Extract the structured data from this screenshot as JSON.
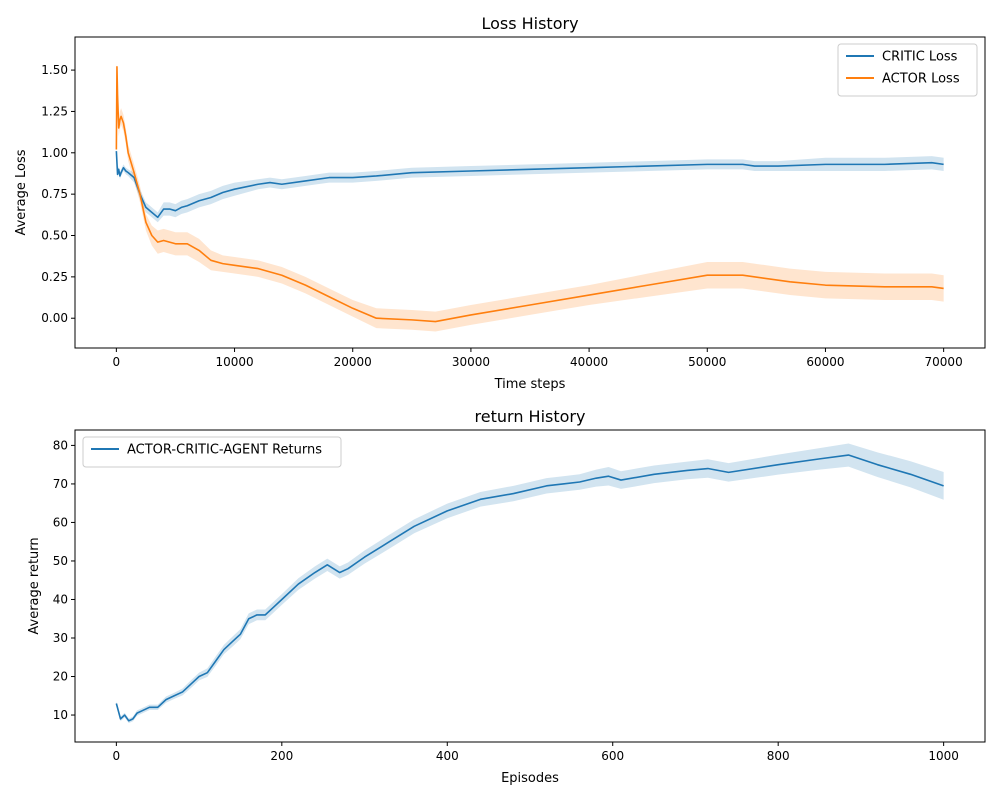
{
  "chart_data": [
    {
      "type": "line",
      "title": "Loss History",
      "xlabel": "Time steps",
      "ylabel": "Average Loss",
      "xlim": [
        -3500,
        73500
      ],
      "ylim": [
        -0.18,
        1.7
      ],
      "xticks": [
        0,
        10000,
        20000,
        30000,
        40000,
        50000,
        60000,
        70000
      ],
      "xtick_labels": [
        "0",
        "10000",
        "20000",
        "30000",
        "40000",
        "50000",
        "60000",
        "70000"
      ],
      "yticks": [
        0.0,
        0.25,
        0.5,
        0.75,
        1.0,
        1.25,
        1.5
      ],
      "ytick_labels": [
        "0.00",
        "0.25",
        "0.50",
        "0.75",
        "1.00",
        "1.25",
        "1.50"
      ],
      "grid": false,
      "legend_position": "upper right",
      "series": [
        {
          "name": "CRITIC Loss",
          "color": "#1f77b4",
          "band_color": "#1f77b4",
          "x": [
            0,
            100,
            200,
            300,
            400,
            600,
            800,
            1000,
            1500,
            2000,
            2500,
            3000,
            3500,
            4000,
            4500,
            5000,
            5500,
            6000,
            7000,
            8000,
            9000,
            10000,
            12000,
            13000,
            14000,
            16000,
            18000,
            20000,
            22000,
            25000,
            30000,
            35000,
            40000,
            45000,
            50000,
            53000,
            54000,
            56000,
            60000,
            65000,
            69000,
            70000
          ],
          "y": [
            1.01,
            0.87,
            0.9,
            0.86,
            0.88,
            0.91,
            0.89,
            0.88,
            0.85,
            0.75,
            0.67,
            0.64,
            0.61,
            0.66,
            0.66,
            0.65,
            0.67,
            0.68,
            0.71,
            0.73,
            0.76,
            0.78,
            0.81,
            0.82,
            0.81,
            0.83,
            0.85,
            0.85,
            0.86,
            0.88,
            0.89,
            0.9,
            0.91,
            0.92,
            0.93,
            0.93,
            0.92,
            0.92,
            0.93,
            0.93,
            0.94,
            0.93
          ],
          "band_half_width": [
            0.02,
            0.02,
            0.02,
            0.02,
            0.02,
            0.02,
            0.02,
            0.02,
            0.03,
            0.03,
            0.03,
            0.03,
            0.03,
            0.04,
            0.04,
            0.04,
            0.04,
            0.04,
            0.04,
            0.04,
            0.04,
            0.04,
            0.03,
            0.03,
            0.03,
            0.03,
            0.03,
            0.03,
            0.03,
            0.03,
            0.03,
            0.03,
            0.03,
            0.03,
            0.03,
            0.03,
            0.03,
            0.03,
            0.04,
            0.04,
            0.04,
            0.04
          ]
        },
        {
          "name": "ACTOR Loss",
          "color": "#ff7f0e",
          "band_color": "#ff7f0e",
          "x": [
            0,
            50,
            100,
            200,
            300,
            400,
            600,
            800,
            1000,
            1500,
            2000,
            2500,
            3000,
            3500,
            4000,
            4500,
            5000,
            5500,
            6000,
            7000,
            8000,
            9000,
            10000,
            12000,
            14000,
            16000,
            18000,
            20000,
            22000,
            25000,
            27000,
            30000,
            35000,
            40000,
            45000,
            50000,
            53000,
            57000,
            60000,
            65000,
            69000,
            70000
          ],
          "y": [
            1.02,
            1.52,
            1.35,
            1.15,
            1.2,
            1.22,
            1.18,
            1.1,
            1.0,
            0.88,
            0.75,
            0.58,
            0.5,
            0.46,
            0.47,
            0.46,
            0.45,
            0.45,
            0.45,
            0.41,
            0.35,
            0.33,
            0.32,
            0.3,
            0.26,
            0.2,
            0.13,
            0.06,
            0.0,
            -0.01,
            -0.02,
            0.02,
            0.08,
            0.14,
            0.2,
            0.26,
            0.26,
            0.22,
            0.2,
            0.19,
            0.19,
            0.18
          ],
          "band_half_width": [
            0.03,
            0.03,
            0.04,
            0.05,
            0.05,
            0.05,
            0.05,
            0.05,
            0.05,
            0.05,
            0.05,
            0.05,
            0.06,
            0.07,
            0.07,
            0.07,
            0.07,
            0.07,
            0.07,
            0.07,
            0.06,
            0.05,
            0.05,
            0.05,
            0.05,
            0.05,
            0.05,
            0.05,
            0.06,
            0.06,
            0.06,
            0.06,
            0.06,
            0.06,
            0.07,
            0.08,
            0.08,
            0.08,
            0.08,
            0.08,
            0.08,
            0.08
          ]
        }
      ]
    },
    {
      "type": "line",
      "title": "return History",
      "xlabel": "Episodes",
      "ylabel": "Average return",
      "xlim": [
        -50,
        1050
      ],
      "ylim": [
        3,
        84
      ],
      "xticks": [
        0,
        200,
        400,
        600,
        800,
        1000
      ],
      "xtick_labels": [
        "0",
        "200",
        "400",
        "600",
        "800",
        "1000"
      ],
      "yticks": [
        10,
        20,
        30,
        40,
        50,
        60,
        70,
        80
      ],
      "ytick_labels": [
        "10",
        "20",
        "30",
        "40",
        "50",
        "60",
        "70",
        "80"
      ],
      "grid": false,
      "legend_position": "upper left",
      "series": [
        {
          "name": "ACTOR-CRITIC-AGENT Returns",
          "color": "#1f77b4",
          "band_color": "#1f77b4",
          "x": [
            0,
            5,
            10,
            15,
            20,
            25,
            30,
            40,
            50,
            60,
            70,
            80,
            90,
            100,
            110,
            120,
            130,
            140,
            150,
            160,
            170,
            180,
            190,
            200,
            220,
            240,
            255,
            270,
            280,
            300,
            330,
            360,
            400,
            440,
            480,
            520,
            540,
            560,
            580,
            595,
            610,
            650,
            690,
            715,
            740,
            800,
            850,
            885,
            920,
            960,
            1000
          ],
          "y": [
            13,
            9,
            10,
            8.5,
            9,
            10.5,
            11,
            12,
            12,
            14,
            15,
            16,
            18,
            20,
            21,
            24,
            27,
            29,
            31,
            35,
            36,
            36,
            38,
            40,
            44,
            47,
            49,
            47,
            48,
            51,
            55,
            59,
            63,
            66,
            67.5,
            69.5,
            70,
            70.5,
            71.5,
            72,
            71,
            72.5,
            73.5,
            74,
            73,
            75,
            76.5,
            77.5,
            75,
            72.5,
            69.5
          ],
          "band_half_width": [
            0.5,
            0.6,
            0.6,
            0.6,
            0.6,
            0.7,
            0.7,
            0.7,
            0.7,
            0.8,
            0.8,
            0.9,
            1.0,
            1.0,
            1.1,
            1.2,
            1.2,
            1.3,
            1.3,
            1.4,
            1.4,
            1.4,
            1.4,
            1.4,
            1.5,
            1.6,
            1.6,
            1.6,
            1.6,
            1.7,
            1.8,
            1.8,
            1.9,
            1.9,
            2.0,
            2.0,
            2.0,
            2.0,
            2.2,
            2.4,
            2.3,
            2.3,
            2.3,
            2.4,
            2.4,
            2.6,
            2.8,
            3.0,
            3.2,
            3.4,
            3.6
          ]
        }
      ]
    }
  ]
}
